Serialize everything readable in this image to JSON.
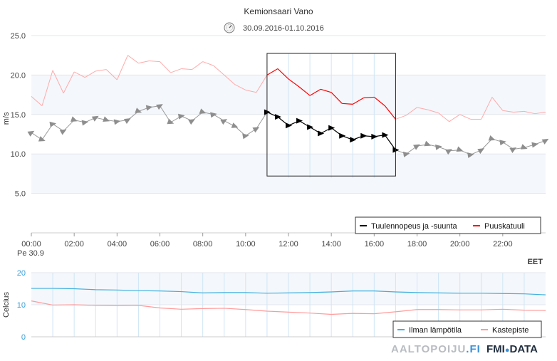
{
  "header": {
    "title": "Kemionsaari Vano",
    "date_range": "30.09.2016-01.10.2016",
    "clock_icon": "clock-icon"
  },
  "timezone_label": "EET",
  "branding": {
    "left": "AALTOPOIJU",
    "left_suffix": ".FI",
    "right": "FMI",
    "right_suffix": "DATA"
  },
  "chart_data": [
    {
      "type": "line",
      "title": "Kemionsaari Vano",
      "ylabel": "m/s",
      "ylim": [
        0,
        25
      ],
      "xlim": [
        0,
        24
      ],
      "yticks": [
        "5.0",
        "10.0",
        "15.0",
        "20.0",
        "25.0"
      ],
      "x_tick_labels": [
        "00:00",
        "02:00",
        "04:00",
        "06:00",
        "08:00",
        "10:00",
        "12:00",
        "14:00",
        "16:00",
        "18:00",
        "20:00",
        "22:00"
      ],
      "x_first_sublabel": "Pe 30.9",
      "highlight_window_hours": [
        11,
        17
      ],
      "legend": [
        "Tuulennopeus ja -suunta",
        "Puuskatuuli"
      ],
      "legend_placement": "bottom-right",
      "series": [
        {
          "name": "Tuulennopeus ja -suunta",
          "color": "#999999",
          "highlight_color": "#000000",
          "x": [
            0,
            0.5,
            1,
            1.5,
            2,
            2.5,
            3,
            3.5,
            4,
            4.5,
            5,
            5.5,
            6,
            6.5,
            7,
            7.5,
            8,
            8.5,
            9,
            9.5,
            10,
            10.5,
            11,
            11.5,
            12,
            12.5,
            13,
            13.5,
            14,
            14.5,
            15,
            15.5,
            16,
            16.5,
            17,
            17.5,
            18,
            18.5,
            19,
            19.5,
            20,
            20.5,
            21,
            21.5,
            22,
            22.5,
            23,
            23.5,
            24
          ],
          "values": [
            12.7,
            11.8,
            13.8,
            12.9,
            14.3,
            14.0,
            14.6,
            14.3,
            14.1,
            14.3,
            15.4,
            15.9,
            16.1,
            14.0,
            14.8,
            14.2,
            15.3,
            15.0,
            14.2,
            13.5,
            12.3,
            13.2,
            15.3,
            14.7,
            13.6,
            14.2,
            13.4,
            12.6,
            13.3,
            12.3,
            11.8,
            12.3,
            12.2,
            12.4,
            10.5,
            10.0,
            11.0,
            11.2,
            10.9,
            10.4,
            10.5,
            9.9,
            10.5,
            11.9,
            11.5,
            10.6,
            10.8,
            11.2,
            11.7
          ]
        },
        {
          "name": "Puuskatuuli",
          "color": "#ffaaaa",
          "highlight_color": "#ff0000",
          "x": [
            0,
            0.5,
            1,
            1.5,
            2,
            2.5,
            3,
            3.5,
            4,
            4.5,
            5,
            5.5,
            6,
            6.5,
            7,
            7.5,
            8,
            8.5,
            9,
            9.5,
            10,
            10.5,
            11,
            11.5,
            12,
            12.5,
            13,
            13.5,
            14,
            14.5,
            15,
            15.5,
            16,
            16.5,
            17,
            17.5,
            18,
            18.5,
            19,
            19.5,
            20,
            20.5,
            21,
            21.5,
            22,
            22.5,
            23,
            23.5,
            24
          ],
          "values": [
            17.3,
            16.1,
            20.6,
            17.7,
            20.4,
            19.7,
            20.5,
            20.7,
            19.4,
            22.5,
            21.5,
            21.8,
            21.7,
            20.3,
            20.8,
            20.7,
            21.7,
            21.2,
            20.0,
            18.8,
            18.1,
            17.8,
            20.0,
            20.8,
            19.5,
            18.5,
            17.4,
            18.2,
            17.8,
            16.4,
            16.3,
            17.1,
            17.2,
            16.1,
            14.4,
            14.9,
            15.9,
            15.6,
            15.2,
            14.1,
            15.0,
            14.4,
            14.4,
            17.2,
            15.5,
            15.3,
            15.4,
            15.1,
            15.3
          ]
        }
      ]
    },
    {
      "type": "line",
      "ylabel": "Celcius",
      "ylim": [
        0,
        20
      ],
      "xlim": [
        0,
        24
      ],
      "yticks": [
        "0",
        "10",
        "20"
      ],
      "legend": [
        "Ilman lämpötila",
        "Kastepiste"
      ],
      "legend_placement": "bottom-right",
      "series": [
        {
          "name": "Ilman lämpötila",
          "color": "#3fb0dd",
          "x": [
            0,
            1,
            2,
            3,
            4,
            5,
            6,
            7,
            8,
            9,
            10,
            11,
            12,
            13,
            14,
            15,
            16,
            17,
            18,
            19,
            20,
            21,
            22,
            23,
            24
          ],
          "values": [
            15.1,
            15.1,
            15.0,
            14.7,
            14.6,
            14.4,
            14.3,
            14.1,
            13.7,
            13.8,
            13.8,
            13.6,
            13.7,
            13.8,
            14.0,
            14.3,
            14.3,
            14.0,
            13.8,
            13.7,
            13.6,
            13.6,
            13.5,
            13.4,
            13.1
          ]
        },
        {
          "name": "Kastepiste",
          "color": "#ff9a9a",
          "x": [
            0,
            1,
            2,
            3,
            4,
            5,
            6,
            7,
            8,
            9,
            10,
            11,
            12,
            13,
            14,
            15,
            16,
            17,
            18,
            19,
            20,
            21,
            22,
            23,
            24
          ],
          "values": [
            11.2,
            9.9,
            10.0,
            9.8,
            9.7,
            9.8,
            9.0,
            8.6,
            8.8,
            8.9,
            8.5,
            8.0,
            7.7,
            7.4,
            7.0,
            7.3,
            7.2,
            7.8,
            8.5,
            8.5,
            8.4,
            8.4,
            8.6,
            8.3,
            8.2
          ]
        }
      ]
    }
  ]
}
